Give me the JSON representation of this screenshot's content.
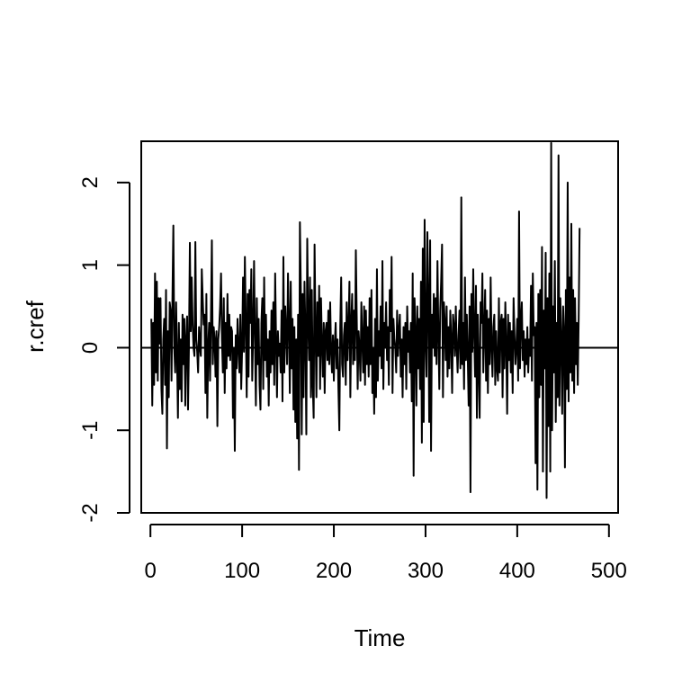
{
  "chart_data": {
    "type": "line",
    "xlabel": "Time",
    "ylabel": "r.cref",
    "xlim": [
      -10,
      510
    ],
    "ylim": [
      -2.0,
      2.5
    ],
    "x_ticks": [
      0,
      100,
      200,
      300,
      400,
      500
    ],
    "x_tick_labels": [
      "0",
      "100",
      "200",
      "300",
      "400",
      "500"
    ],
    "y_ticks": [
      -2,
      -1,
      0,
      1,
      2
    ],
    "y_tick_labels": [
      "-2",
      "-1",
      "0",
      "1",
      "2"
    ],
    "reference_line": {
      "y": 0
    },
    "grid": false,
    "legend": "none",
    "line_color": "#000000",
    "series": [
      {
        "x_start": 1,
        "x_step": 1,
        "values": [
          0.35,
          -0.7,
          0.3,
          -0.45,
          0.9,
          -0.3,
          0.8,
          -0.4,
          0.6,
          0.05,
          0.6,
          -0.5,
          -0.8,
          0.1,
          0.35,
          -0.45,
          0.7,
          -1.22,
          0.2,
          -0.6,
          0.55,
          0.45,
          -0.4,
          0.58,
          1.48,
          0.0,
          -0.3,
          0.55,
          -0.1,
          -0.85,
          0.3,
          -0.5,
          0.1,
          -0.65,
          0.4,
          -0.2,
          0.35,
          -0.7,
          0.1,
          0.38,
          -0.75,
          0.0,
          1.27,
          0.2,
          0.85,
          0.3,
          0.0,
          -0.1,
          1.28,
          0.1,
          -0.05,
          -0.3,
          0.25,
          0.0,
          -0.1,
          0.95,
          0.6,
          0.28,
          0.4,
          -0.55,
          0.65,
          -0.85,
          0.0,
          0.3,
          -0.4,
          0.35,
          1.3,
          -0.2,
          0.25,
          0.1,
          -0.35,
          0.2,
          -0.95,
          0.1,
          0.25,
          0.5,
          0.9,
          0.1,
          -0.3,
          0.6,
          -0.55,
          0.3,
          -0.25,
          0.65,
          -0.1,
          0.4,
          -0.15,
          0.25,
          0.2,
          -0.85,
          0.0,
          -1.25,
          0.15,
          -0.25,
          0.35,
          0.0,
          -0.3,
          0.4,
          -0.5,
          0.0,
          0.85,
          -0.05,
          1.1,
          0.3,
          -0.6,
          0.65,
          -0.35,
          0.7,
          0.3,
          0.95,
          -0.4,
          0.2,
          1.05,
          0.1,
          -0.7,
          0.6,
          -0.2,
          0.35,
          -0.45,
          -0.75,
          0.3,
          0.6,
          -0.5,
          0.85,
          -0.15,
          0.4,
          -0.35,
          0.1,
          -0.7,
          0.2,
          -0.3,
          0.45,
          -0.2,
          0.55,
          -0.45,
          0.9,
          0.1,
          -0.6,
          0.2,
          -0.1,
          0.05,
          -0.3,
          0.45,
          -0.65,
          1.1,
          -0.3,
          0.5,
          0.2,
          -0.2,
          0.9,
          0.3,
          -0.55,
          0.8,
          -0.25,
          0.35,
          -0.75,
          0.25,
          -0.9,
          0.1,
          -1.1,
          0.4,
          -1.48,
          1.52,
          0.7,
          -1.05,
          0.65,
          -0.6,
          0.8,
          0.2,
          -1.05,
          1.32,
          0.35,
          -0.15,
          0.85,
          -0.6,
          0.7,
          -0.45,
          -0.85,
          1.25,
          0.25,
          -0.6,
          0.55,
          -0.1,
          0.75,
          -0.5,
          0.6,
          0.05,
          -0.35,
          0.3,
          -0.55,
          0.2,
          0.3,
          -0.15,
          0.45,
          -0.2,
          0.55,
          -0.05,
          -0.3,
          0.15,
          -0.4,
          0.05,
          0.3,
          -0.25,
          0.1,
          -0.5,
          -1.0,
          0.25,
          0.85,
          -0.2,
          -0.35,
          0.15,
          0.3,
          -0.45,
          0.55,
          -0.15,
          0.25,
          0.8,
          -0.6,
          0.3,
          0.65,
          -0.2,
          0.45,
          -0.15,
          1.18,
          0.35,
          -0.5,
          0.2,
          0.0,
          -0.4,
          0.55,
          0.1,
          -0.3,
          0.5,
          -0.45,
          0.45,
          -0.2,
          0.25,
          -0.35,
          0.6,
          -0.2,
          0.7,
          -0.55,
          0.0,
          -0.8,
          0.35,
          -0.6,
          0.95,
          -0.4,
          0.2,
          -0.1,
          0.5,
          -0.25,
          1.05,
          -0.5,
          0.3,
          0.0,
          0.55,
          -0.15,
          0.25,
          -0.45,
          0.7,
          0.2,
          1.1,
          -0.55,
          0.35,
          0.1,
          0.0,
          -0.3,
          0.45,
          -0.1,
          0.2,
          0.4,
          -0.35,
          0.1,
          -0.6,
          0.25,
          -0.2,
          0.3,
          -0.5,
          0.5,
          -0.05,
          0.2,
          -0.3,
          0.3,
          -0.65,
          0.9,
          -1.55,
          0.6,
          0.2,
          -0.7,
          0.5,
          -0.25,
          0.35,
          -0.5,
          0.8,
          -1.15,
          1.2,
          -0.9,
          1.55,
          0.1,
          -0.35,
          1.4,
          0.6,
          -0.9,
          1.3,
          -1.25,
          0.4,
          0.0,
          0.65,
          -0.1,
          0.6,
          -0.2,
          1.05,
          0.2,
          -0.5,
          0.45,
          0.8,
          1.25,
          -0.6,
          0.55,
          0.3,
          -0.15,
          0.5,
          -0.35,
          0.25,
          -0.25,
          0.45,
          0.1,
          -0.55,
          0.4,
          0.25,
          -0.1,
          0.5,
          0.0,
          -0.3,
          0.15,
          0.45,
          -0.25,
          1.82,
          -0.2,
          0.3,
          -0.5,
          0.85,
          -0.15,
          0.4,
          -0.1,
          -0.7,
          0.5,
          -1.75,
          0.65,
          -0.05,
          0.95,
          0.2,
          -0.35,
          0.75,
          -0.85,
          0.4,
          -0.25,
          -0.85,
          0.55,
          0.3,
          0.9,
          -0.3,
          0.2,
          0.7,
          -0.4,
          0.45,
          -0.55,
          0.35,
          -0.2,
          0.85,
          0.0,
          -0.35,
          0.25,
          0.4,
          -0.45,
          0.2,
          -0.25,
          -0.4,
          0.6,
          -0.3,
          0.3,
          0.4,
          -0.6,
          0.35,
          -0.25,
          0.55,
          0.05,
          -0.8,
          0.4,
          -0.15,
          0.3,
          -0.3,
          0.2,
          -0.55,
          0.6,
          0.15,
          -0.2,
          0.0,
          0.35,
          -0.4,
          1.65,
          -0.25,
          0.3,
          0.55,
          -0.15,
          0.2,
          -0.35,
          0.1,
          -0.2,
          0.25,
          -0.3,
          0.1,
          -0.1,
          0.75,
          -0.4,
          0.9,
          0.15,
          0.25,
          -1.4,
          0.3,
          -1.72,
          0.65,
          -0.6,
          0.7,
          -0.45,
          1.22,
          -1.5,
          0.45,
          -0.25,
          1.15,
          -1.82,
          0.6,
          -0.95,
          0.9,
          -1.5,
          2.48,
          -1.0,
          0.5,
          -0.3,
          1.05,
          -0.9,
          0.3,
          -0.6,
          2.33,
          -0.7,
          0.6,
          0.1,
          -0.8,
          0.5,
          0.2,
          -1.45,
          0.7,
          -0.5,
          2.0,
          -0.65,
          0.85,
          -0.3,
          1.5,
          -0.4,
          0.7,
          -0.55,
          0.6,
          -0.2,
          0.3,
          -0.45,
          0.35,
          1.45
        ]
      }
    ]
  }
}
